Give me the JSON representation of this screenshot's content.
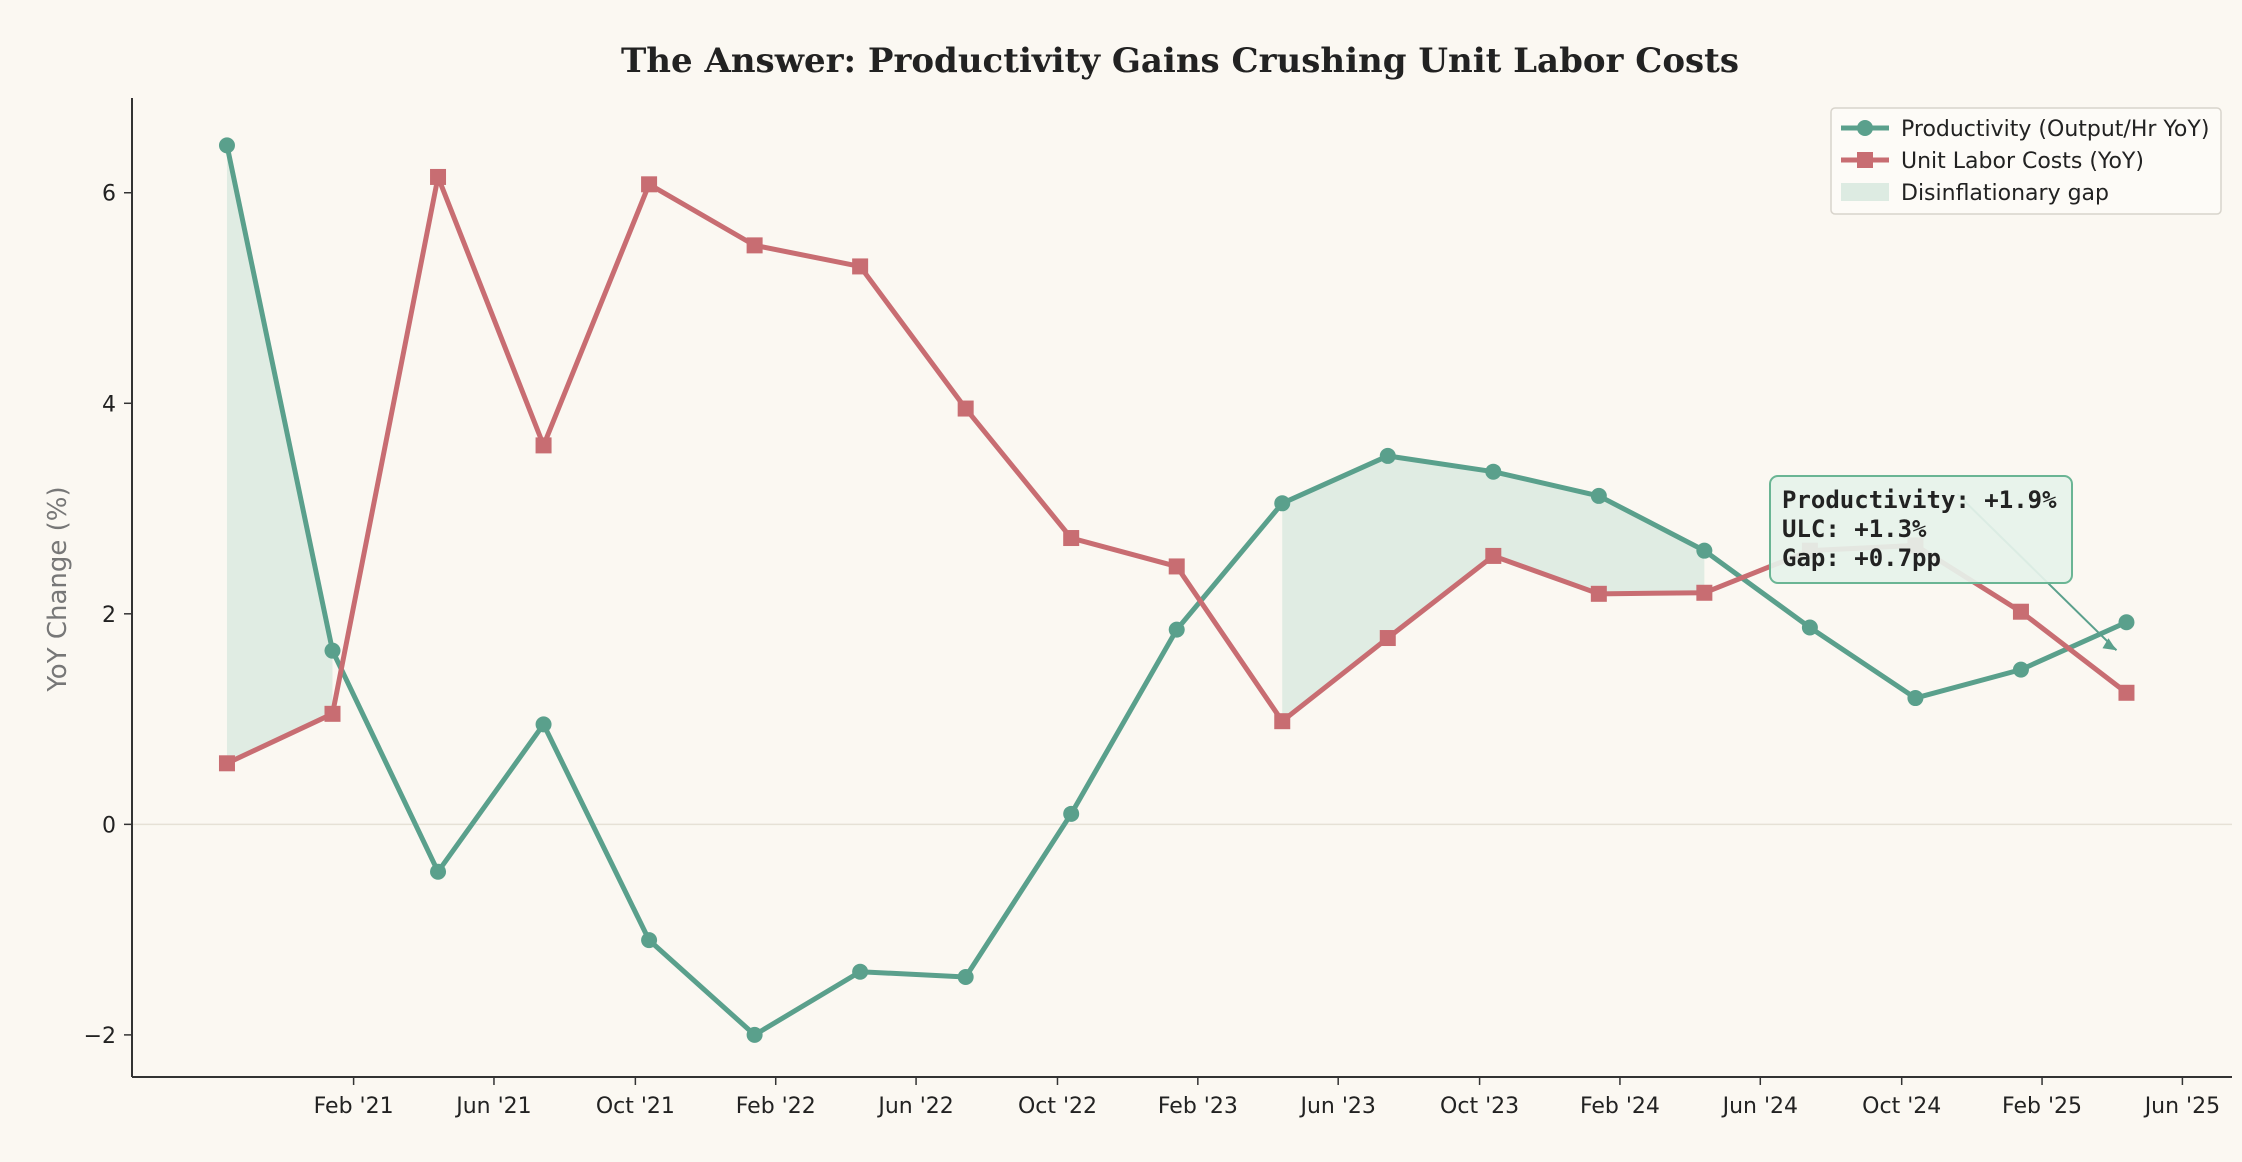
{
  "chart_data": {
    "type": "line",
    "title": "The Answer: Productivity Gains Crushing Unit Labor Costs",
    "xlabel": "",
    "ylabel": "YoY Change (%)",
    "ylim": [
      -2.4,
      6.9
    ],
    "yticks": [
      -2,
      0,
      2,
      4,
      6
    ],
    "ytick_labels": [
      "−2",
      "0",
      "2",
      "4",
      "6"
    ],
    "xticks": [
      {
        "label": "Feb '21",
        "t": 1.2
      },
      {
        "label": "Jun '21",
        "t": 2.53
      },
      {
        "label": "Oct '21",
        "t": 3.87
      },
      {
        "label": "Feb '22",
        "t": 5.2
      },
      {
        "label": "Jun '22",
        "t": 6.53
      },
      {
        "label": "Oct '22",
        "t": 7.87
      },
      {
        "label": "Feb '23",
        "t": 9.2
      },
      {
        "label": "Jun '23",
        "t": 10.53
      },
      {
        "label": "Oct '23",
        "t": 11.87
      },
      {
        "label": "Feb '24",
        "t": 13.2
      },
      {
        "label": "Jun '24",
        "t": 14.53
      },
      {
        "label": "Oct '24",
        "t": 15.87
      },
      {
        "label": "Feb '25",
        "t": 17.2
      },
      {
        "label": "Jun '25",
        "t": 18.53
      }
    ],
    "x": [
      0,
      1,
      2,
      3,
      4,
      5,
      6,
      7,
      8,
      9,
      10,
      11,
      12,
      13,
      14,
      15,
      16,
      17,
      18
    ],
    "x_range": [
      -0.9,
      19.0
    ],
    "series": [
      {
        "name": "Productivity (Output/Hr YoY)",
        "color": "#5aa08c",
        "marker": "circle",
        "values": [
          6.45,
          1.65,
          -0.45,
          0.95,
          -1.1,
          -2.0,
          -1.4,
          -1.45,
          0.1,
          1.85,
          3.05,
          3.5,
          3.35,
          3.12,
          2.6,
          1.87,
          1.2,
          1.47,
          1.92
        ]
      },
      {
        "name": "Unit Labor Costs (YoY)",
        "color": "#c86d72",
        "marker": "square",
        "values": [
          0.58,
          1.05,
          6.15,
          3.6,
          6.08,
          5.5,
          5.3,
          3.95,
          2.72,
          2.45,
          0.98,
          1.77,
          2.55,
          2.19,
          2.2,
          2.6,
          2.65,
          2.02,
          1.25
        ]
      }
    ],
    "fill_label": "Disinflationary gap",
    "fill_color": "#d7e8de",
    "legend_position": "top-right",
    "grid": false,
    "annotation": {
      "lines": [
        "Productivity: +1.9%",
        "ULC: +1.3%",
        "Gap: +0.7pp"
      ],
      "target_index": 18
    }
  }
}
